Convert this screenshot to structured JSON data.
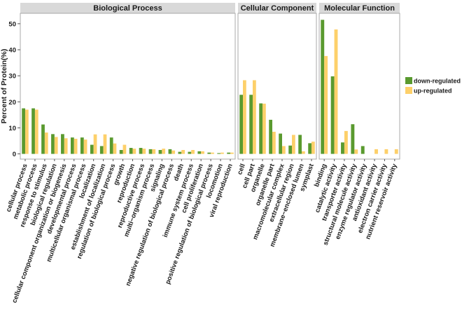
{
  "chart_data": {
    "type": "bar",
    "xlabel": "",
    "ylabel": "Percent of Protein(%)",
    "ylim": [
      -2,
      54
    ],
    "yticks": [
      "0",
      "10",
      "20",
      "30",
      "40",
      "50"
    ],
    "legend": {
      "placement": "right",
      "position_in_panel": "outside"
    },
    "grid": false,
    "series": [
      {
        "name": "down-regulated",
        "color": "#5a9a2f"
      },
      {
        "name": "up-regulated",
        "color": "#fdd06a"
      }
    ],
    "panels": [
      {
        "title": "Biological Process",
        "categories": [
          "cellular process",
          "metabolic process",
          "response to stimulus",
          "biological regulation",
          "cellular component organization or biogenesis",
          "developmental process",
          "multicellular organismal process",
          "localization",
          "establishment of localization",
          "regulation of biological process",
          "growth",
          "reproduction",
          "reproductive process",
          "multi−organism process",
          "signaling",
          "negative regulation of biological process",
          "death",
          "immune system process",
          "cell proliferation",
          "positive regulation of biological process",
          "locomotion",
          "viral reproduction"
        ],
        "down": [
          17.5,
          17.5,
          11.3,
          7.6,
          7.6,
          6.3,
          6.3,
          3.5,
          3.0,
          6.3,
          1.5,
          2.3,
          2.3,
          1.8,
          1.5,
          1.8,
          0.8,
          0.8,
          1.0,
          0.5,
          0.3,
          0.5
        ],
        "up": [
          17.0,
          17.0,
          8.2,
          6.5,
          6.0,
          5.8,
          5.5,
          7.5,
          7.5,
          4.0,
          3.5,
          2.0,
          2.0,
          1.8,
          2.0,
          1.3,
          1.5,
          1.5,
          1.0,
          0.5,
          0.5,
          0.5
        ]
      },
      {
        "title": "Cellular Component",
        "categories": [
          "cell",
          "cell part",
          "organelle",
          "organelle part",
          "macromolecular complex",
          "extracellular region",
          "membrane−enclosed lumen",
          "symplast"
        ],
        "down": [
          22.7,
          22.7,
          19.4,
          13.1,
          7.8,
          3.2,
          7.3,
          4.1
        ],
        "up": [
          28.3,
          28.3,
          19.3,
          8.5,
          3.0,
          7.3,
          1.0,
          4.7
        ]
      },
      {
        "title": "Molecular Function",
        "categories": [
          "binding",
          "catalytic activity",
          "transporter activity",
          "structural molecule activity",
          "enzyme regulator activity",
          "antioxidant activity",
          "electron carrier activity",
          "nutrient reservoir activity"
        ],
        "down": [
          51.5,
          29.8,
          4.4,
          11.4,
          3.0,
          0,
          0,
          0
        ],
        "up": [
          37.6,
          47.8,
          8.8,
          1.7,
          0,
          1.8,
          1.8,
          1.8
        ]
      }
    ]
  }
}
